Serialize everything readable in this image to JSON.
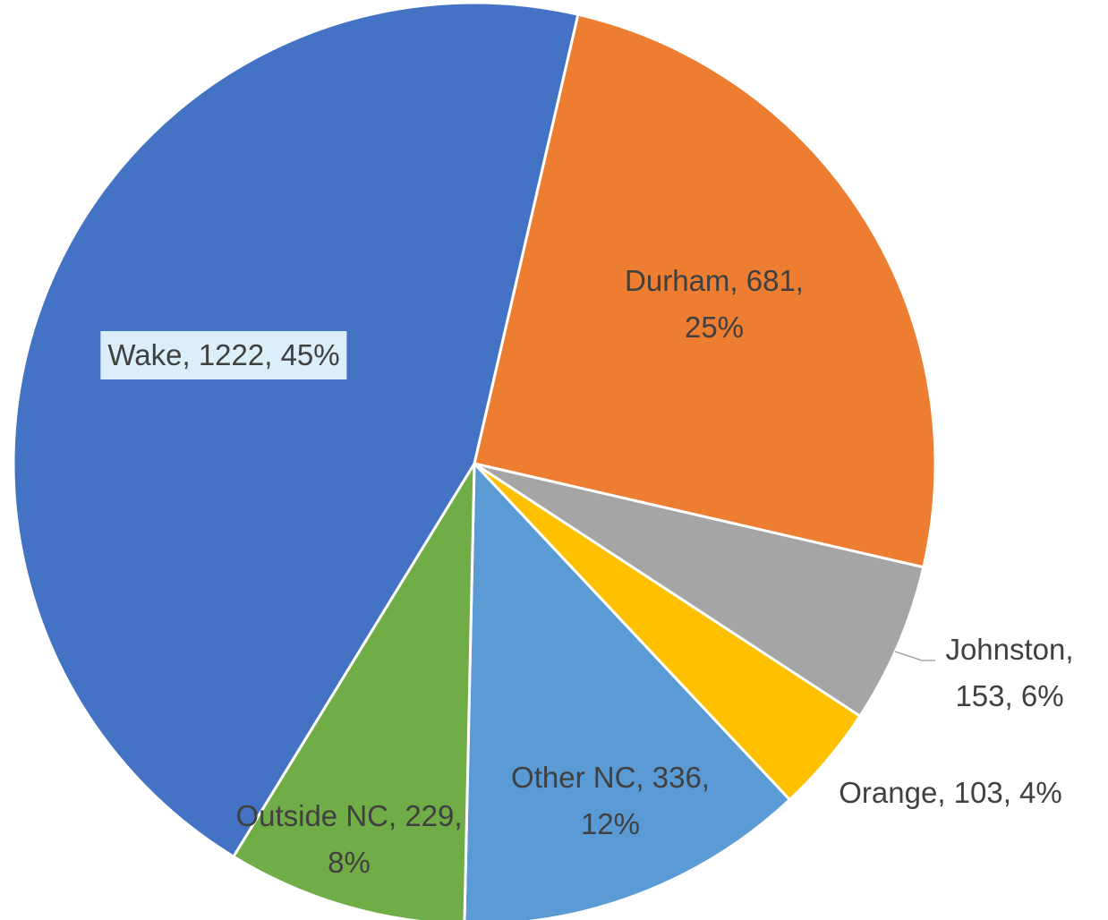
{
  "chart_data": {
    "type": "pie",
    "categories": [
      "Durham",
      "Johnston",
      "Orange",
      "Other NC",
      "Outside NC",
      "Wake"
    ],
    "values": [
      681,
      153,
      103,
      336,
      229,
      1222
    ],
    "value_labels": [
      "Durham, 681, 25%",
      "Johnston, 153, 6%",
      "Orange, 103, 4%",
      "Other NC, 336, 12%",
      "Outside NC, 229, 8%",
      "Wake, 1222, 45%"
    ],
    "colors": [
      "#ED7D31",
      "#A5A5A5",
      "#FFC000",
      "#5B9BD5",
      "#70AD47",
      "#4472C4"
    ]
  }
}
